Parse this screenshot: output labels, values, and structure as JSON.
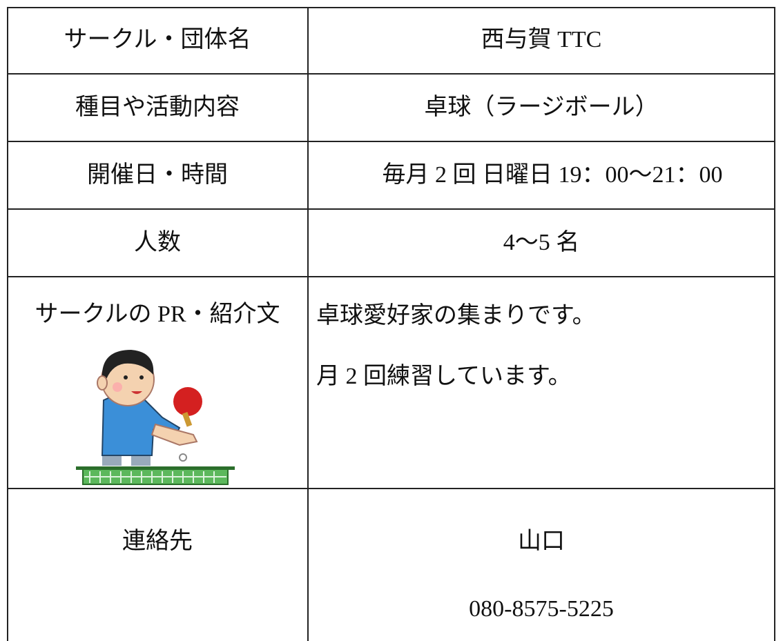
{
  "table": {
    "rows": [
      {
        "label": "サークル・団体名",
        "lines": [
          "西与賀 TTC"
        ]
      },
      {
        "label": "種目や活動内容",
        "lines": [
          "卓球（ラージボール）"
        ]
      },
      {
        "label": "開催日・時間",
        "lines": [
          "毎月 2 回  日曜日  19：00～21：00"
        ]
      },
      {
        "label": "人数",
        "lines": [
          "4～5 名"
        ]
      },
      {
        "label": "サークルの PR・紹介文",
        "lines": [
          "卓球愛好家の集まりです。",
          "月 2 回練習しています。"
        ]
      },
      {
        "label": "連絡先",
        "lines": [
          "山口",
          "080-8575-5225"
        ]
      }
    ]
  }
}
